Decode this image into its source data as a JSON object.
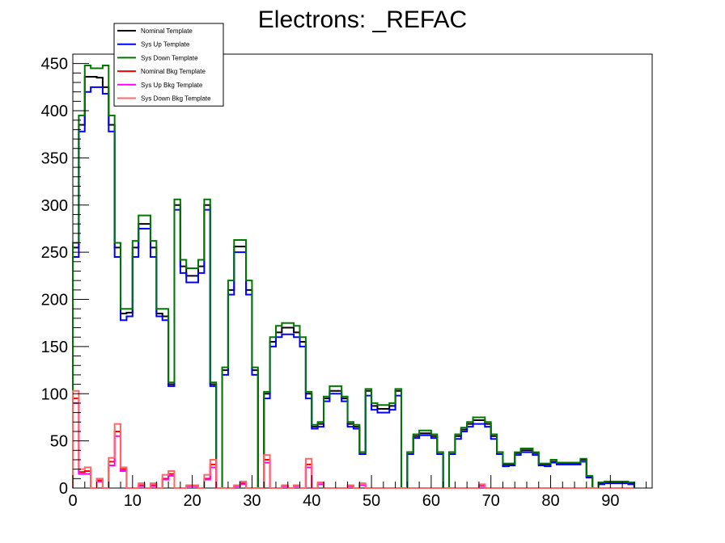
{
  "chart_data": {
    "type": "line",
    "title": "Electrons: _REFAC",
    "xlabel": "",
    "ylabel": "",
    "xlim": [
      0,
      97
    ],
    "ylim": [
      0,
      460
    ],
    "x_ticks": [
      0,
      10,
      20,
      30,
      40,
      50,
      60,
      70,
      80,
      90
    ],
    "y_ticks": [
      0,
      50,
      100,
      150,
      200,
      250,
      300,
      350,
      400,
      450
    ],
    "bin_width": 1,
    "legend_position": "top-left",
    "grid": false,
    "series": [
      {
        "name": "Nominal Template",
        "color": "#000000",
        "values": [
          255,
          385,
          436,
          436,
          435,
          425,
          385,
          255,
          185,
          186,
          255,
          280,
          280,
          255,
          185,
          182,
          110,
          300,
          235,
          225,
          225,
          235,
          300,
          110,
          0,
          125,
          210,
          256,
          256,
          210,
          125,
          0,
          100,
          155,
          165,
          170,
          170,
          165,
          155,
          100,
          65,
          68,
          95,
          103,
          103,
          95,
          68,
          65,
          38,
          103,
          87,
          84,
          84,
          87,
          103,
          0,
          38,
          55,
          58,
          58,
          55,
          38,
          0,
          38,
          55,
          62,
          68,
          72,
          72,
          68,
          55,
          38,
          25,
          25,
          37,
          40,
          40,
          37,
          25,
          25,
          28,
          26,
          26,
          26,
          26,
          30,
          12,
          0,
          5,
          6,
          6,
          6,
          6,
          5
        ]
      },
      {
        "name": "Sys Up Template",
        "color": "#0000ff",
        "values": [
          245,
          378,
          420,
          425,
          425,
          418,
          378,
          245,
          178,
          182,
          245,
          275,
          275,
          245,
          182,
          178,
          108,
          295,
          228,
          218,
          218,
          228,
          295,
          108,
          0,
          120,
          205,
          250,
          250,
          205,
          120,
          0,
          95,
          150,
          160,
          163,
          163,
          160,
          150,
          95,
          63,
          65,
          92,
          100,
          100,
          92,
          65,
          63,
          36,
          98,
          83,
          80,
          80,
          83,
          98,
          0,
          36,
          53,
          56,
          56,
          53,
          36,
          0,
          36,
          52,
          60,
          65,
          68,
          68,
          65,
          52,
          36,
          23,
          24,
          35,
          38,
          38,
          35,
          24,
          23,
          27,
          25,
          25,
          25,
          25,
          28,
          11,
          0,
          4,
          5,
          5,
          5,
          5,
          4
        ]
      },
      {
        "name": "Sys Down Template",
        "color": "#007700",
        "values": [
          260,
          395,
          448,
          445,
          445,
          448,
          395,
          260,
          190,
          190,
          262,
          289,
          289,
          262,
          190,
          190,
          112,
          306,
          242,
          233,
          233,
          242,
          306,
          112,
          0,
          128,
          220,
          263,
          263,
          220,
          128,
          0,
          102,
          160,
          172,
          175,
          175,
          172,
          160,
          102,
          67,
          70,
          97,
          108,
          108,
          97,
          70,
          67,
          38,
          105,
          90,
          88,
          88,
          90,
          105,
          0,
          38,
          57,
          61,
          61,
          57,
          38,
          0,
          38,
          57,
          64,
          70,
          75,
          75,
          70,
          57,
          38,
          26,
          26,
          38,
          42,
          42,
          38,
          26,
          26,
          30,
          27,
          27,
          27,
          27,
          31,
          13,
          0,
          6,
          7,
          7,
          7,
          7,
          6
        ]
      },
      {
        "name": "Nominal Bkg Template",
        "color": "#ff0000",
        "values": [
          95,
          17,
          18,
          0,
          8,
          0,
          28,
          60,
          20,
          0,
          0,
          3,
          0,
          3,
          0,
          10,
          15,
          0,
          0,
          2,
          2,
          0,
          10,
          25,
          0,
          0,
          0,
          2,
          5,
          0,
          0,
          0,
          30,
          0,
          0,
          2,
          0,
          2,
          0,
          25,
          0,
          4,
          0,
          0,
          0,
          0,
          2,
          0,
          3,
          0,
          0,
          0,
          0,
          0,
          0,
          0,
          0,
          0,
          0,
          0,
          0,
          0,
          0,
          0,
          0,
          0,
          0,
          0,
          3,
          0,
          0,
          0,
          0,
          0,
          0,
          0,
          0,
          0,
          0,
          0,
          0,
          0,
          0,
          0,
          0,
          0,
          0,
          0,
          0,
          0,
          0,
          0,
          0,
          0
        ]
      },
      {
        "name": "Sys Up Bkg Template",
        "color": "#ff00ff",
        "values": [
          90,
          15,
          15,
          0,
          7,
          0,
          24,
          55,
          18,
          0,
          0,
          2,
          0,
          2,
          0,
          9,
          13,
          0,
          0,
          2,
          2,
          0,
          9,
          22,
          0,
          0,
          0,
          2,
          4,
          0,
          0,
          0,
          27,
          0,
          0,
          2,
          0,
          2,
          0,
          22,
          0,
          4,
          0,
          0,
          0,
          0,
          2,
          0,
          3,
          0,
          0,
          0,
          0,
          0,
          0,
          0,
          0,
          0,
          0,
          0,
          0,
          0,
          0,
          0,
          0,
          0,
          0,
          0,
          2,
          0,
          0,
          0,
          0,
          0,
          0,
          0,
          0,
          0,
          0,
          0,
          0,
          0,
          0,
          0,
          0,
          0,
          0,
          0,
          0,
          0,
          0,
          0,
          0,
          0
        ]
      },
      {
        "name": "Sys Down Bkg Template",
        "color": "#ff6666",
        "values": [
          103,
          20,
          22,
          0,
          10,
          0,
          32,
          68,
          22,
          0,
          0,
          5,
          0,
          5,
          0,
          14,
          18,
          0,
          0,
          3,
          3,
          0,
          14,
          30,
          0,
          0,
          0,
          3,
          7,
          0,
          0,
          0,
          35,
          0,
          0,
          3,
          0,
          3,
          0,
          31,
          0,
          6,
          0,
          0,
          0,
          0,
          3,
          0,
          5,
          0,
          0,
          0,
          0,
          0,
          0,
          0,
          0,
          0,
          0,
          0,
          0,
          0,
          0,
          0,
          0,
          0,
          0,
          0,
          4,
          0,
          0,
          0,
          0,
          0,
          0,
          0,
          0,
          0,
          0,
          0,
          0,
          0,
          0,
          0,
          0,
          0,
          0,
          0,
          0,
          0,
          0,
          0,
          0,
          0
        ]
      }
    ]
  }
}
